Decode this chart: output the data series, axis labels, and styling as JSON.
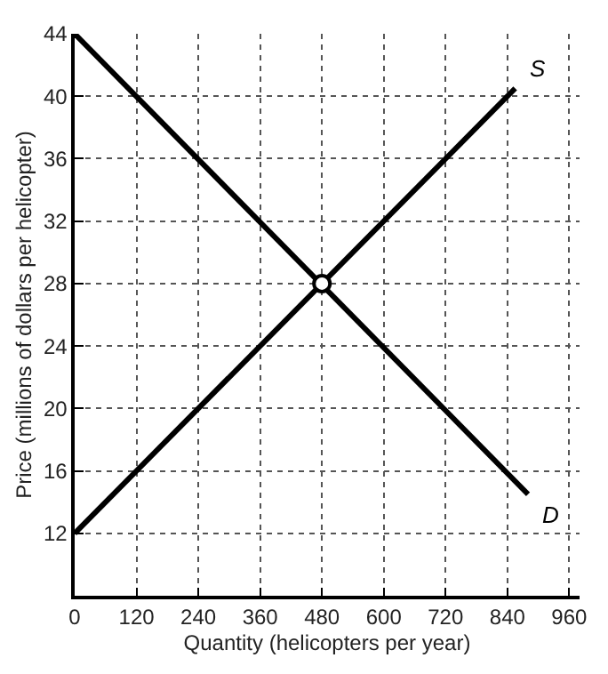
{
  "chart_data": {
    "type": "line",
    "xlabel": "Quantity (helicopters per year)",
    "ylabel": "Price (millions of dollars per helicopter)",
    "xlim": [
      0,
      980
    ],
    "xticks": [
      0,
      120,
      240,
      360,
      480,
      600,
      720,
      840,
      960
    ],
    "ylim": [
      8,
      44
    ],
    "yticks": [
      12,
      16,
      20,
      24,
      28,
      32,
      36,
      40,
      44
    ],
    "grid": true,
    "legend": false,
    "marker": "none",
    "series": [
      {
        "name": "S",
        "color": "#000000",
        "x": [
          0,
          855
        ],
        "values": [
          12,
          40.5
        ]
      },
      {
        "name": "D",
        "color": "#000000",
        "x": [
          0,
          880
        ],
        "values": [
          44,
          14.5
        ]
      },
      {
        "type": "scatter",
        "marker": "circle",
        "color": "#ffffff",
        "x": [
          480
        ],
        "values": [
          28
        ]
      }
    ]
  }
}
